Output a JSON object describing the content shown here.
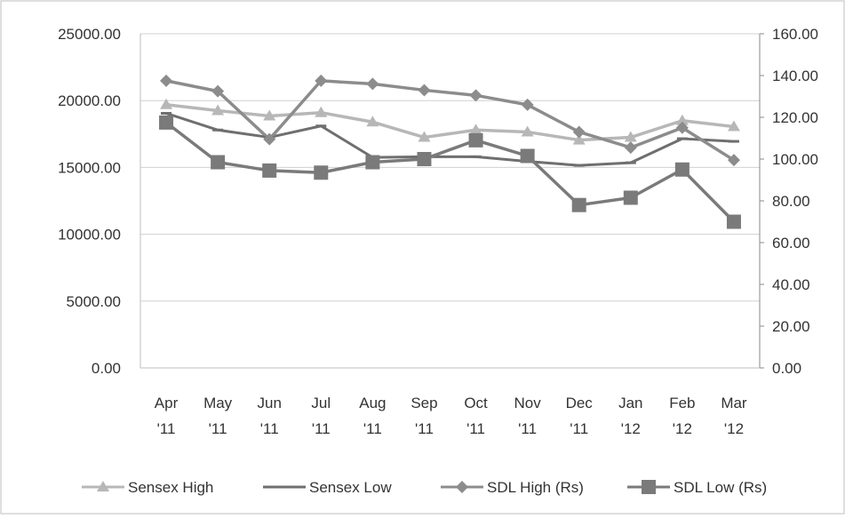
{
  "chart_data": {
    "type": "line",
    "title": "",
    "categories": [
      [
        "Apr",
        "'11"
      ],
      [
        "May",
        "'11"
      ],
      [
        "Jun",
        "'11"
      ],
      [
        "Jul",
        "'11"
      ],
      [
        "Aug",
        "'11"
      ],
      [
        "Sep",
        "'11"
      ],
      [
        "Oct",
        "'11"
      ],
      [
        "Nov",
        "'11"
      ],
      [
        "Dec",
        "'11"
      ],
      [
        "Jan",
        "'12"
      ],
      [
        "Feb",
        "'12"
      ],
      [
        "Mar",
        "'12"
      ]
    ],
    "y_left": {
      "min": 0,
      "max": 25000,
      "step": 5000,
      "tick_labels": [
        "0.00",
        "5000.00",
        "10000.00",
        "15000.00",
        "20000.00",
        "25000.00"
      ]
    },
    "y_right": {
      "min": 0,
      "max": 160,
      "step": 20,
      "tick_labels": [
        "0.00",
        "20.00",
        "40.00",
        "60.00",
        "80.00",
        "100.00",
        "120.00",
        "140.00",
        "160.00"
      ]
    },
    "grid": "horizontal",
    "legend_position": "bottom",
    "series": [
      {
        "name": "Sensex High",
        "axis": "left",
        "marker": "triangle",
        "color": "#b7b7b7",
        "values": [
          19700,
          19250,
          18850,
          19100,
          18400,
          17250,
          17800,
          17650,
          17050,
          17250,
          18500,
          18050
        ]
      },
      {
        "name": "Sensex Low",
        "axis": "left",
        "marker": "dash",
        "color": "#6f6f6f",
        "values": [
          19050,
          17800,
          17250,
          18100,
          15750,
          15800,
          15800,
          15450,
          15150,
          15350,
          17150,
          16950
        ]
      },
      {
        "name": "SDL High (Rs)",
        "axis": "right",
        "marker": "diamond",
        "color": "#8c8c8c",
        "values": [
          137.5,
          132.5,
          109.5,
          137.5,
          136,
          133,
          130.5,
          126,
          113,
          105.5,
          115,
          99.5
        ]
      },
      {
        "name": "SDL Low (Rs)",
        "axis": "right",
        "marker": "square",
        "color": "#7a7a7a",
        "values": [
          117.5,
          98.5,
          94.5,
          93.5,
          98.5,
          100,
          109,
          101.5,
          78,
          81.5,
          95,
          70
        ]
      }
    ]
  }
}
